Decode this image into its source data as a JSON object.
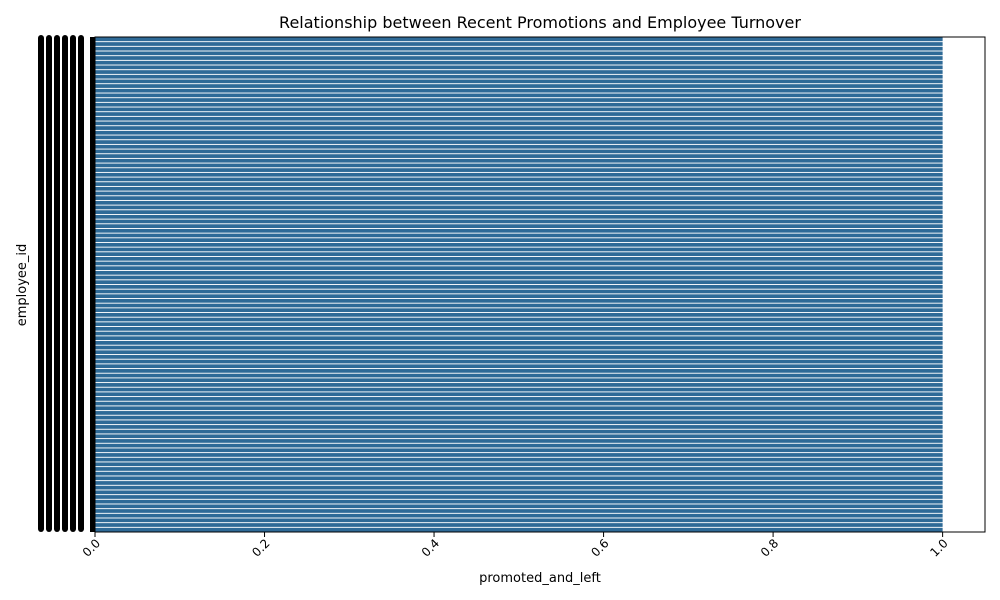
{
  "chart_data": {
    "type": "bar",
    "orientation": "horizontal",
    "title": "Relationship between Recent Promotions and Employee Turnover",
    "xlabel": "promoted_and_left",
    "ylabel": "employee_id",
    "xlim": [
      0.0,
      1.05
    ],
    "xticks": [
      "0.0",
      "0.2",
      "0.4",
      "0.6",
      "0.8",
      "1.0"
    ],
    "xtick_values": [
      0.0,
      0.2,
      0.4,
      0.6,
      0.8,
      1.0
    ],
    "ytick_labels_legible": false,
    "grid": false,
    "bar_color": "#2e6a97",
    "series": [
      {
        "values": [
          1,
          1,
          1,
          1,
          1,
          1,
          1,
          1,
          1,
          1,
          1,
          1,
          1,
          1,
          1,
          1,
          1,
          1,
          1,
          1,
          1,
          1,
          1,
          1,
          1,
          1,
          1,
          1,
          1,
          1,
          1,
          1,
          1,
          1,
          1,
          1,
          1,
          1,
          1,
          1,
          1,
          1,
          1,
          1,
          1,
          1,
          1,
          1,
          1,
          1,
          1,
          1,
          1,
          1,
          1,
          1,
          1,
          1,
          1,
          1,
          1,
          1,
          1,
          1,
          1,
          1,
          1,
          1,
          1,
          1,
          1,
          1,
          1,
          1,
          1,
          1,
          1,
          1,
          1,
          1,
          1,
          1,
          1,
          1,
          1,
          1,
          1,
          1,
          1,
          1,
          1,
          1,
          1,
          1,
          1,
          1,
          1,
          1,
          1,
          1,
          1,
          1,
          1,
          1,
          1,
          1
        ]
      }
    ]
  }
}
